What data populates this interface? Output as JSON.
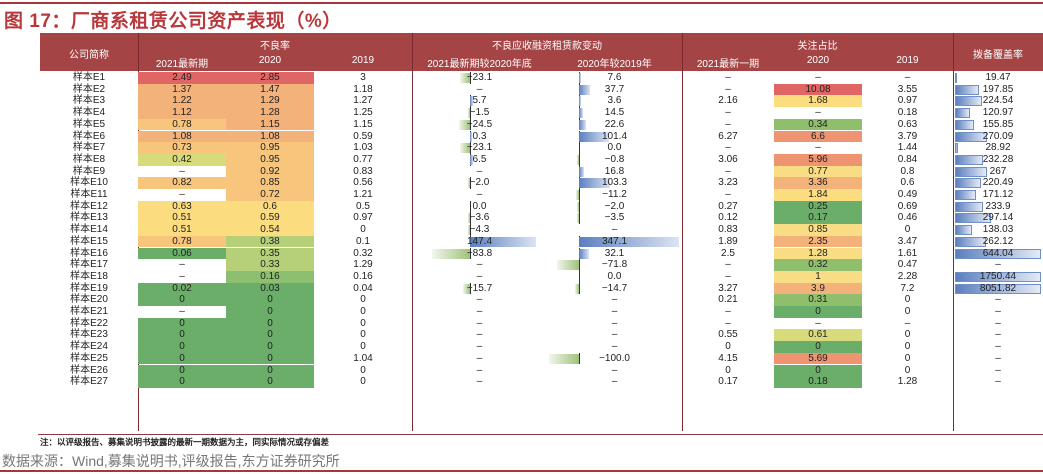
{
  "title": "图 17：厂商系租赁公司资产表现（%）",
  "header": {
    "company": "公司简称",
    "npl_group": "不良率",
    "npl_cols": [
      "2021最新期",
      "2020",
      "2019"
    ],
    "chg_group": "不良应收融资租赁款变动",
    "chg_cols": [
      "2021最新期较2020年底",
      "2020年较2019年"
    ],
    "watch_group": "关注占比",
    "watch_cols": [
      "2021最新一期",
      "2020",
      "2019"
    ],
    "coverage": "拨备覆盖率"
  },
  "rows": [
    {
      "name": "样本E1",
      "npl21": "2.49",
      "npl20": "2.85",
      "npl19": "3",
      "chg21": "−23.1",
      "chg20": "7.6",
      "w21": "–",
      "w20": "–",
      "w19": "–",
      "cov": "19.47"
    },
    {
      "name": "样本E2",
      "npl21": "1.37",
      "npl20": "1.47",
      "npl19": "1.18",
      "chg21": "–",
      "chg20": "37.7",
      "w21": "–",
      "w20": "10.08",
      "w19": "3.55",
      "cov": "197.85"
    },
    {
      "name": "样本E3",
      "npl21": "1.22",
      "npl20": "1.29",
      "npl19": "1.27",
      "chg21": "5.7",
      "chg20": "3.6",
      "w21": "2.16",
      "w20": "1.68",
      "w19": "0.97",
      "cov": "224.54"
    },
    {
      "name": "样本E4",
      "npl21": "1.12",
      "npl20": "1.28",
      "npl19": "1.25",
      "chg21": "−1.5",
      "chg20": "14.5",
      "w21": "–",
      "w20": "–",
      "w19": "0.18",
      "cov": "120.97"
    },
    {
      "name": "样本E5",
      "npl21": "0.78",
      "npl20": "1.15",
      "npl19": "1.15",
      "chg21": "−24.5",
      "chg20": "22.6",
      "w21": "–",
      "w20": "0.34",
      "w19": "0.63",
      "cov": "155.85"
    },
    {
      "name": "样本E6",
      "npl21": "1.08",
      "npl20": "1.08",
      "npl19": "0.59",
      "chg21": "0.3",
      "chg20": "101.4",
      "w21": "6.27",
      "w20": "6.6",
      "w19": "3.79",
      "cov": "270.09"
    },
    {
      "name": "样本E7",
      "npl21": "0.73",
      "npl20": "0.95",
      "npl19": "1.03",
      "chg21": "−23.1",
      "chg20": "0.0",
      "w21": "–",
      "w20": "–",
      "w19": "1.44",
      "cov": "28.92"
    },
    {
      "name": "样本E8",
      "npl21": "0.42",
      "npl20": "0.95",
      "npl19": "0.77",
      "chg21": "6.5",
      "chg20": "−0.8",
      "w21": "3.06",
      "w20": "5.96",
      "w19": "0.84",
      "cov": "232.28"
    },
    {
      "name": "样本E9",
      "npl21": "–",
      "npl20": "0.92",
      "npl19": "0.83",
      "chg21": "–",
      "chg20": "16.8",
      "w21": "–",
      "w20": "0.77",
      "w19": "0.8",
      "cov": "267"
    },
    {
      "name": "样本E10",
      "npl21": "0.82",
      "npl20": "0.85",
      "npl19": "0.56",
      "chg21": "−2.0",
      "chg20": "103.3",
      "w21": "3.23",
      "w20": "3.36",
      "w19": "0.6",
      "cov": "220.49"
    },
    {
      "name": "样本E11",
      "npl21": "–",
      "npl20": "0.72",
      "npl19": "1.21",
      "chg21": "–",
      "chg20": "−11.2",
      "w21": "–",
      "w20": "1.84",
      "w19": "0.49",
      "cov": "171.12"
    },
    {
      "name": "样本E12",
      "npl21": "0.63",
      "npl20": "0.6",
      "npl19": "0.5",
      "chg21": "0.0",
      "chg20": "−2.0",
      "w21": "0.27",
      "w20": "0.25",
      "w19": "0.69",
      "cov": "233.9"
    },
    {
      "name": "样本E13",
      "npl21": "0.51",
      "npl20": "0.59",
      "npl19": "0.97",
      "chg21": "−3.6",
      "chg20": "−3.5",
      "w21": "0.12",
      "w20": "0.17",
      "w19": "0.46",
      "cov": "297.14"
    },
    {
      "name": "样本E14",
      "npl21": "0.51",
      "npl20": "0.54",
      "npl19": "0",
      "chg21": "−4.3",
      "chg20": "–",
      "w21": "0.83",
      "w20": "0.85",
      "w19": "0",
      "cov": "138.03"
    },
    {
      "name": "样本E15",
      "npl21": "0.78",
      "npl20": "0.38",
      "npl19": "0.1",
      "chg21": "147.4",
      "chg20": "347.1",
      "w21": "1.89",
      "w20": "2.35",
      "w19": "3.47",
      "cov": "262.12"
    },
    {
      "name": "样本E16",
      "npl21": "0.06",
      "npl20": "0.35",
      "npl19": "0.32",
      "chg21": "−83.8",
      "chg20": "32.1",
      "w21": "2.5",
      "w20": "1.28",
      "w19": "1.61",
      "cov": "644.04"
    },
    {
      "name": "样本E17",
      "npl21": "–",
      "npl20": "0.33",
      "npl19": "1.29",
      "chg21": "–",
      "chg20": "−71.8",
      "w21": "–",
      "w20": "0.32",
      "w19": "0.47",
      "cov": "–"
    },
    {
      "name": "样本E18",
      "npl21": "–",
      "npl20": "0.16",
      "npl19": "0.16",
      "chg21": "–",
      "chg20": "0.0",
      "w21": "–",
      "w20": "1",
      "w19": "2.28",
      "cov": "1750.44"
    },
    {
      "name": "样本E19",
      "npl21": "0.02",
      "npl20": "0.03",
      "npl19": "0.04",
      "chg21": "−15.7",
      "chg20": "−14.7",
      "w21": "3.27",
      "w20": "3.9",
      "w19": "7.2",
      "cov": "8051.82"
    },
    {
      "name": "样本E20",
      "npl21": "0",
      "npl20": "0",
      "npl19": "0",
      "chg21": "–",
      "chg20": "–",
      "w21": "0.21",
      "w20": "0.31",
      "w19": "0",
      "cov": "–"
    },
    {
      "name": "样本E21",
      "npl21": "–",
      "npl20": "0",
      "npl19": "0",
      "chg21": "–",
      "chg20": "–",
      "w21": "–",
      "w20": "0",
      "w19": "0",
      "cov": "–"
    },
    {
      "name": "样本E22",
      "npl21": "0",
      "npl20": "0",
      "npl19": "0",
      "chg21": "–",
      "chg20": "–",
      "w21": "–",
      "w20": "–",
      "w19": "–",
      "cov": "–"
    },
    {
      "name": "样本E23",
      "npl21": "0",
      "npl20": "0",
      "npl19": "0",
      "chg21": "–",
      "chg20": "–",
      "w21": "0.55",
      "w20": "0.61",
      "w19": "0",
      "cov": "–"
    },
    {
      "name": "样本E24",
      "npl21": "0",
      "npl20": "0",
      "npl19": "0",
      "chg21": "–",
      "chg20": "–",
      "w21": "0",
      "w20": "0",
      "w19": "0",
      "cov": "–"
    },
    {
      "name": "样本E25",
      "npl21": "0",
      "npl20": "0",
      "npl19": "1.04",
      "chg21": "–",
      "chg20": "−100.0",
      "w21": "4.15",
      "w20": "5.69",
      "w19": "0",
      "cov": "–"
    },
    {
      "name": "样本E26",
      "npl21": "0",
      "npl20": "0",
      "npl19": "0",
      "chg21": "–",
      "chg20": "–",
      "w21": "0",
      "w20": "0",
      "w19": "0",
      "cov": "–"
    },
    {
      "name": "样本E27",
      "npl21": "0",
      "npl20": "0",
      "npl19": "0",
      "chg21": "–",
      "chg20": "–",
      "w21": "0.17",
      "w20": "0.18",
      "w19": "1.28",
      "cov": "–"
    }
  ],
  "colors": {
    "header_bg": "#a54445",
    "title": "#b8383c",
    "red": "#e06666",
    "orange": "#f3b27a",
    "light_orange": "#f7c57c",
    "yellow": "#fbdc7f",
    "yellow_green": "#d8db7b",
    "light_green": "#b6d07a",
    "green": "#6aae6a",
    "bar_blue": "#5b7fbf",
    "bar_green": "#9fc27b"
  },
  "note": "注：以评级报告、募集说明书披露的最新一期数据为主，同实际情况或存偏差",
  "source": "数据来源：Wind,募集说明书,评级报告,东方证券研究所"
}
